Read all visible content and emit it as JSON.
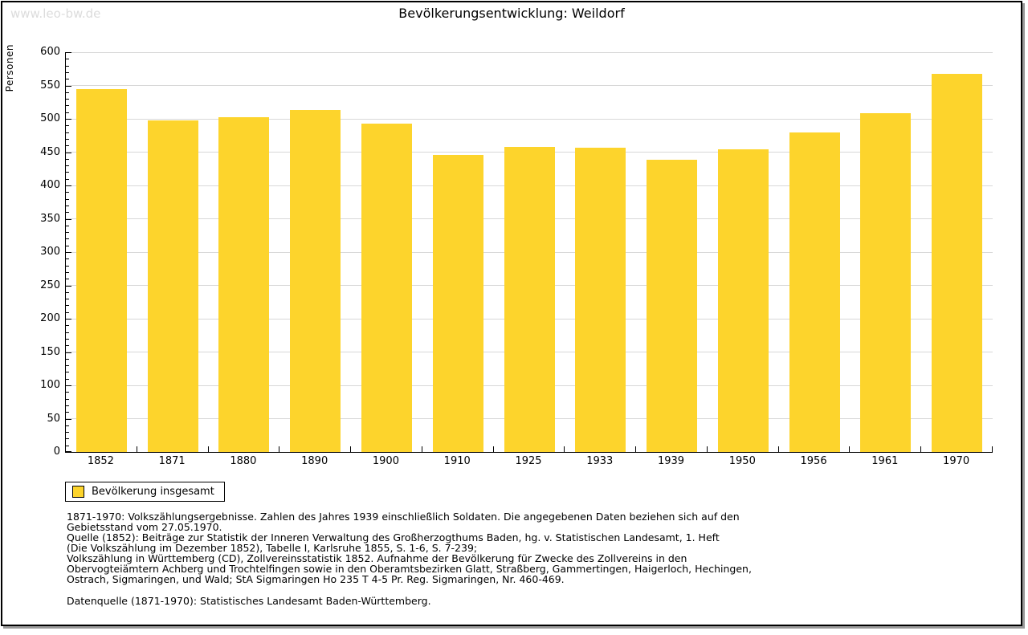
{
  "watermark": "www.leo-bw.de",
  "header": {
    "title": "Bevölkerungsentwicklung: Weildorf"
  },
  "chart_data": {
    "type": "bar",
    "title": "Bevölkerungsentwicklung: Weildorf",
    "xlabel": "",
    "ylabel": "Personen",
    "categories": [
      "1852",
      "1871",
      "1880",
      "1890",
      "1900",
      "1910",
      "1925",
      "1933",
      "1939",
      "1950",
      "1956",
      "1961",
      "1970"
    ],
    "series": [
      {
        "name": "Bevölkerung insgesamt",
        "values": [
          545,
          498,
          502,
          513,
          493,
          446,
          458,
          457,
          438,
          454,
          480,
          509,
          567
        ]
      }
    ],
    "ylim": [
      0,
      600
    ],
    "ytick_step": 50,
    "ytick_minor_step": 10,
    "grid": true,
    "bar_color": "#fdd42c",
    "gridline_color": "#d8d8d8",
    "legend_position": "bottom-left"
  },
  "legend": {
    "label": "Bevölkerung insgesamt",
    "swatch_color": "#fdd42c"
  },
  "footnotes": {
    "lines": [
      "1871-1970: Volkszählungsergebnisse. Zahlen des Jahres 1939 einschließlich Soldaten. Die angegebenen Daten beziehen sich auf den",
      "Gebietsstand vom 27.05.1970.",
      "Quelle (1852): Beiträge zur Statistik der Inneren Verwaltung des Großherzogthums Baden, hg. v. Statistischen Landesamt, 1. Heft",
      "(Die Volkszählung im Dezember 1852), Tabelle I, Karlsruhe 1855, S. 1-6, S. 7-239;",
      "Volkszählung in Württemberg (CD), Zollvereinsstatistik 1852. Aufnahme der Bevölkerung für Zwecke des Zollvereins in den",
      "Obervogteiämtern Achberg und Trochtelfingen sowie in den Oberamtsbezirken Glatt, Straßberg, Gammertingen, Haigerloch, Hechingen,",
      "Ostrach, Sigmaringen, und Wald; StA Sigmaringen Ho 235 T 4-5 Pr. Reg. Sigmaringen, Nr. 460-469."
    ],
    "source": "Datenquelle (1871-1970): Statistisches Landesamt Baden-Württemberg."
  }
}
